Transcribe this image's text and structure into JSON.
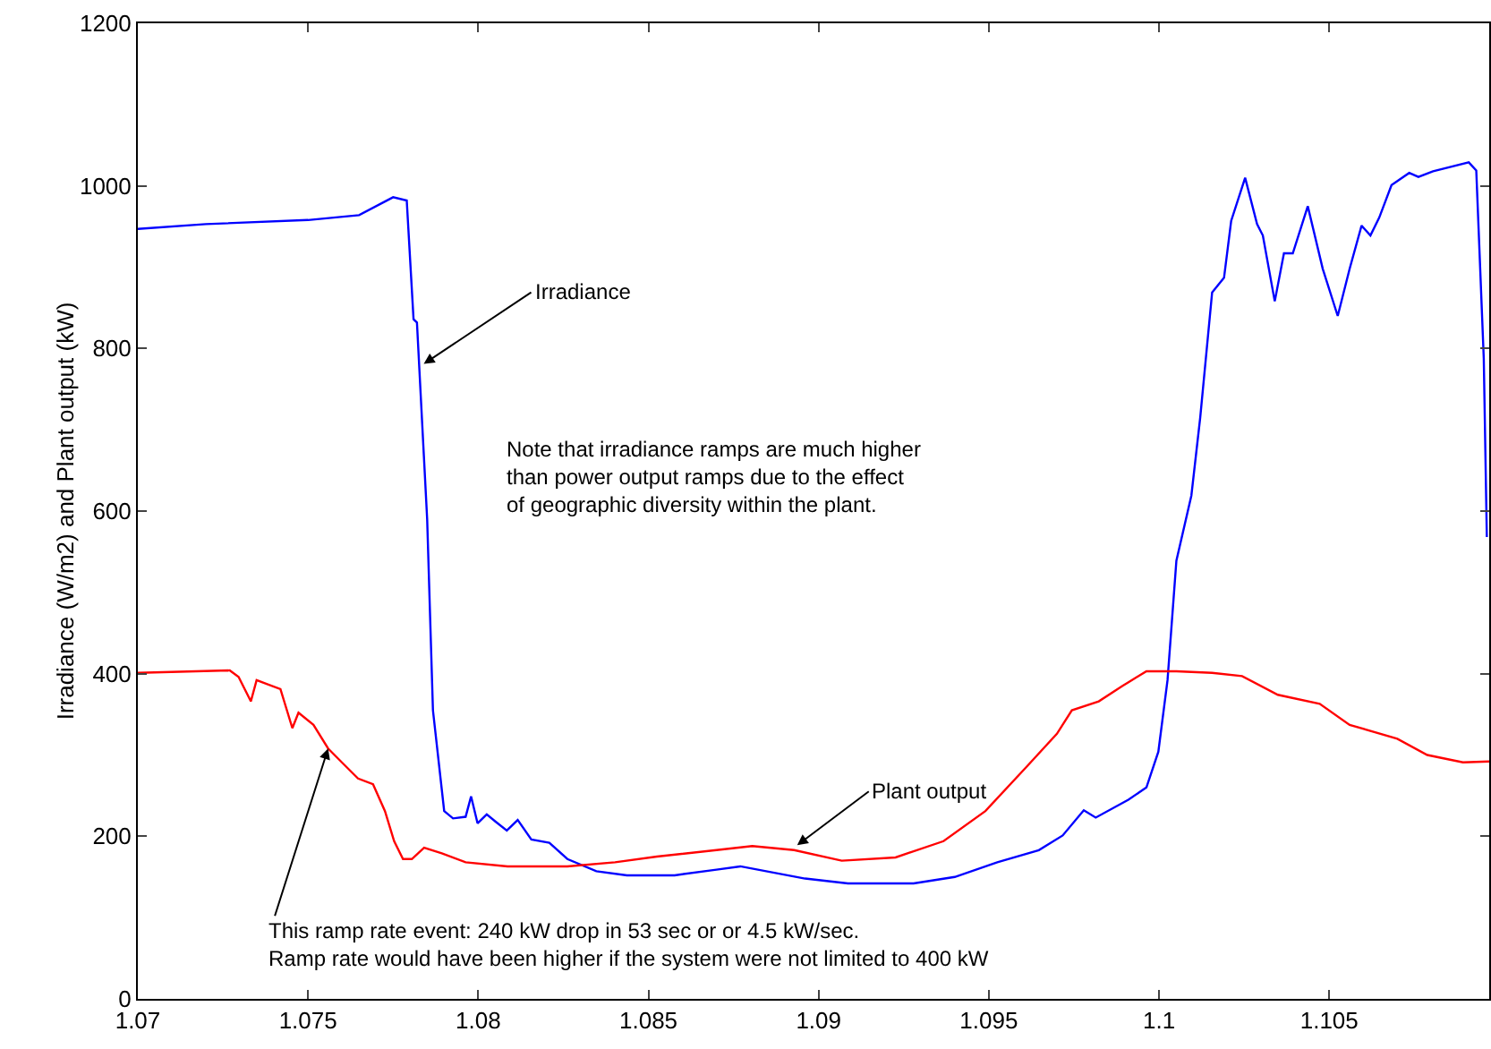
{
  "chart_data": {
    "type": "line",
    "ylabel": "Irradiance (W/m2) and Plant output (kW)",
    "xlim": [
      1.07,
      1.1097
    ],
    "xticks": [
      {
        "value": 1.07,
        "label": "1.07"
      },
      {
        "value": 1.075,
        "label": "1.075"
      },
      {
        "value": 1.08,
        "label": "1.08"
      },
      {
        "value": 1.085,
        "label": "1.085"
      },
      {
        "value": 1.09,
        "label": "1.09"
      },
      {
        "value": 1.095,
        "label": "1.095"
      },
      {
        "value": 1.1,
        "label": "1.1"
      },
      {
        "value": 1.105,
        "label": "1.105"
      }
    ],
    "ylim": [
      0,
      1200
    ],
    "yticks": [
      0,
      200,
      400,
      600,
      800,
      1000,
      1200
    ],
    "grid": false,
    "marker": "none",
    "line_style": "solid",
    "series": [
      {
        "color": "#0000ff",
        "x": [
          1.07,
          1.072,
          1.075,
          1.0765,
          1.0775,
          1.0779,
          1.0781,
          1.0782,
          1.0785,
          1.07867,
          1.079,
          1.07926,
          1.07963,
          1.07979,
          1.07998,
          1.08025,
          1.08051,
          1.08084,
          1.08116,
          1.08156,
          1.08209,
          1.08262,
          1.08347,
          1.08437,
          1.08577,
          1.087,
          1.0877,
          1.0896,
          1.09086,
          1.09279,
          1.094,
          1.09525,
          1.09647,
          1.09717,
          1.09779,
          1.09814,
          1.0991,
          1.09963,
          1.09998,
          1.10025,
          1.10051,
          1.10095,
          1.10121,
          1.10156,
          1.10191,
          1.10212,
          1.10253,
          1.10288,
          1.10305,
          1.1034,
          1.10367,
          1.10393,
          1.10437,
          1.10481,
          1.10525,
          1.1056,
          1.10595,
          1.10621,
          1.10647,
          1.10683,
          1.10735,
          1.10762,
          1.10805,
          1.1091,
          1.10932,
          1.10954,
          1.10963
        ],
        "values": [
          947,
          953,
          958,
          964,
          986,
          982,
          836,
          832,
          590,
          355,
          231,
          222,
          224,
          249,
          216,
          227,
          218,
          207,
          220,
          196,
          192,
          172,
          157,
          152,
          152,
          159,
          163,
          148,
          142,
          142,
          150,
          168,
          183,
          201,
          232,
          223,
          245,
          260,
          304,
          392,
          539,
          619,
          715,
          869,
          887,
          957,
          1010,
          953,
          939,
          858,
          917,
          917,
          975,
          898,
          840,
          898,
          951,
          939,
          961,
          1001,
          1016,
          1011,
          1018,
          1029,
          1019,
          788,
          568
        ]
      },
      {
        "color": "#ff0000",
        "x": [
          1.07,
          1.0727,
          1.07296,
          1.07332,
          1.07349,
          1.07419,
          1.07454,
          1.07472,
          1.07516,
          1.07559,
          1.07604,
          1.07647,
          1.07691,
          1.07726,
          1.07753,
          1.07779,
          1.07805,
          1.07841,
          1.07893,
          1.07963,
          1.08086,
          1.08262,
          1.08402,
          1.08525,
          1.087,
          1.08805,
          1.08928,
          1.09068,
          1.09226,
          1.09367,
          1.0949,
          1.09612,
          1.097,
          1.09744,
          1.09823,
          1.09893,
          1.09963,
          1.10051,
          1.10156,
          1.10244,
          1.10349,
          1.10472,
          1.1056,
          1.107,
          1.10788,
          1.10893,
          1.1097
        ],
        "values": [
          401,
          404,
          396,
          366,
          392,
          381,
          333,
          352,
          337,
          308,
          289,
          271,
          264,
          231,
          194,
          172,
          172,
          186,
          179,
          168,
          163,
          163,
          168,
          175,
          183,
          188,
          183,
          170,
          174,
          194,
          231,
          286,
          326,
          355,
          366,
          385,
          403,
          403,
          401,
          397,
          374,
          363,
          337,
          320,
          300,
          291,
          292
        ]
      }
    ],
    "annotations": [
      {
        "text": "Irradiance",
        "x": 1.0784,
        "y": 781
      },
      {
        "text": "Plant output",
        "x": 1.08937,
        "y": 189
      },
      {
        "text": "This ramp rate event: 240 kW drop in 53 sec or or 4.5 kW/sec.\nRamp rate would have been higher if the system were not limited to 400 kW",
        "x": 1.07559,
        "y": 308
      },
      "Note that irradiance ramps are much higher\nthan power output ramps due to the effect\nof geographic diversity within the plant."
    ]
  }
}
